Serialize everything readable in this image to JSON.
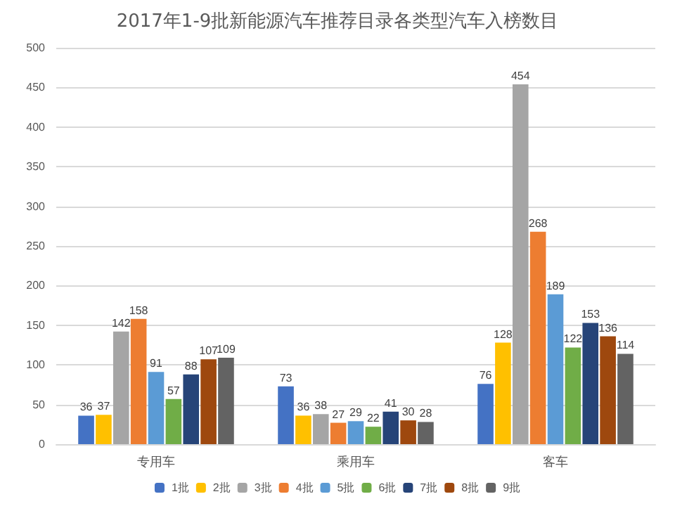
{
  "chart_data": {
    "type": "bar",
    "title": "2017年1-9批新能源汽车推荐目录各类型汽车入榜数目",
    "categories": [
      "专用车",
      "乘用车",
      "客车"
    ],
    "series": [
      {
        "name": "1批",
        "color": "#4472c4",
        "values": [
          36,
          73,
          76
        ]
      },
      {
        "name": "2批",
        "color": "#ffc000",
        "values": [
          37,
          36,
          128
        ]
      },
      {
        "name": "3批",
        "color": "#a5a5a5",
        "values": [
          142,
          38,
          454
        ]
      },
      {
        "name": "4批",
        "color": "#ed7d31",
        "values": [
          158,
          27,
          268
        ]
      },
      {
        "name": "5批",
        "color": "#5b9bd5",
        "values": [
          91,
          29,
          189
        ]
      },
      {
        "name": "6批",
        "color": "#70ad47",
        "values": [
          57,
          22,
          122
        ]
      },
      {
        "name": "7批",
        "color": "#264478",
        "values": [
          88,
          41,
          153
        ]
      },
      {
        "name": "8批",
        "color": "#9e480e",
        "values": [
          107,
          30,
          136
        ]
      },
      {
        "name": "9批",
        "color": "#636363",
        "values": [
          109,
          28,
          114
        ]
      }
    ],
    "ylim": [
      0,
      500
    ],
    "yticks": [
      0,
      50,
      100,
      150,
      200,
      250,
      300,
      350,
      400,
      450,
      500
    ],
    "grid": "y",
    "legend": "bottom",
    "data_labels": true
  }
}
